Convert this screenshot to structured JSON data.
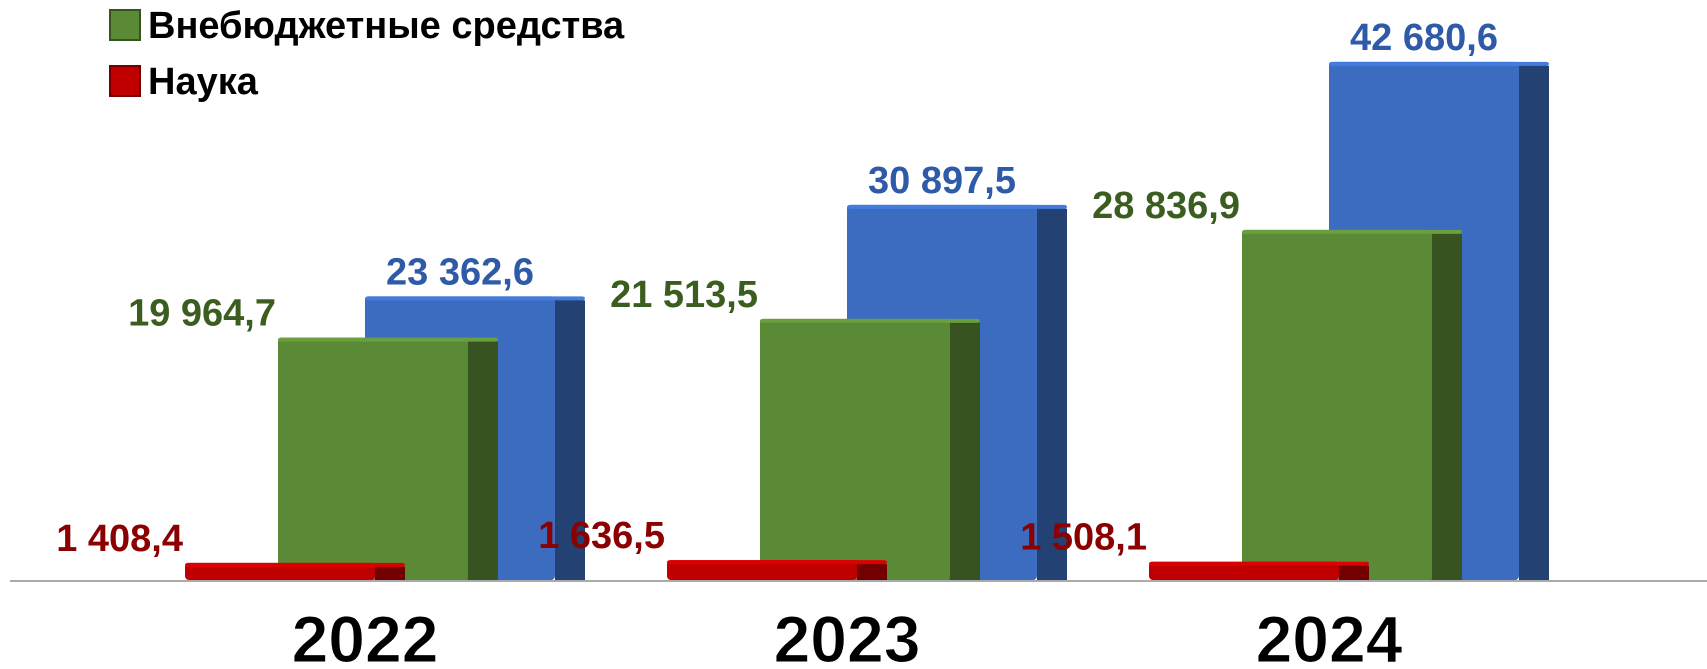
{
  "chart_data": {
    "type": "bar",
    "categories": [
      "2022",
      "2023",
      "2024"
    ],
    "series": [
      {
        "color": "#3b6cc0",
        "values": [
          23362.6,
          30897.5,
          42680.6
        ],
        "value_labels": [
          "23 362,6",
          "30 897,5",
          "42 680,6"
        ]
      },
      {
        "name": "Внебюджетные средства",
        "color": "#5b8a36",
        "values": [
          19964.7,
          21513.5,
          28836.9
        ],
        "value_labels": [
          "19 964,7",
          "21 513,5",
          "28 836,9"
        ]
      },
      {
        "name": "Наука",
        "color": "#c00000",
        "values": [
          1408.4,
          1636.5,
          1508.1
        ],
        "value_labels": [
          "1 408,4",
          "1 636,5",
          "1 508,1"
        ]
      }
    ]
  }
}
